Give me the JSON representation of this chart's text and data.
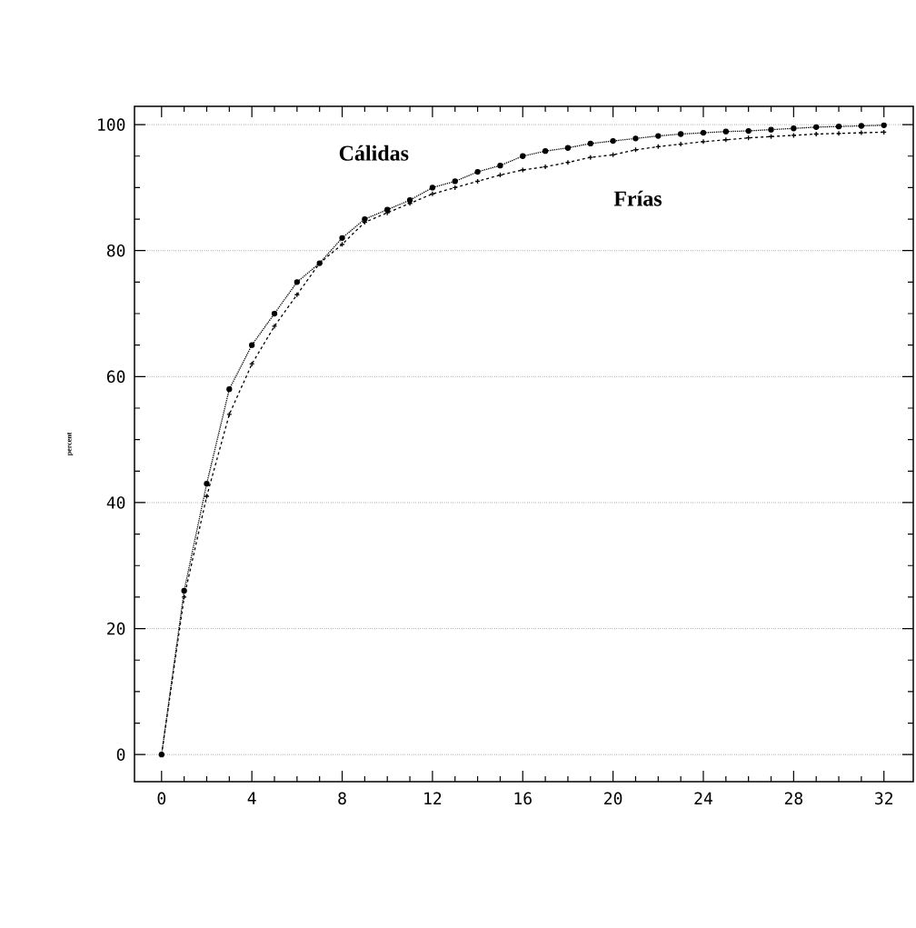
{
  "chart_data": {
    "type": "line",
    "ylabel": "percent",
    "x": [
      0,
      1,
      2,
      3,
      4,
      5,
      6,
      7,
      8,
      9,
      10,
      11,
      12,
      13,
      14,
      15,
      16,
      17,
      18,
      19,
      20,
      21,
      22,
      23,
      24,
      25,
      26,
      27,
      28,
      29,
      30,
      31,
      32
    ],
    "series": [
      {
        "name": "Cálidas",
        "color": "#000000",
        "line_style": "dotted",
        "marker": "circle",
        "values": [
          0,
          26,
          43,
          58,
          65,
          70,
          75,
          78,
          82,
          85,
          86.5,
          88,
          90,
          91,
          92.5,
          93.5,
          95,
          95.8,
          96.3,
          97,
          97.4,
          97.8,
          98.2,
          98.5,
          98.7,
          98.9,
          99,
          99.2,
          99.4,
          99.6,
          99.7,
          99.8,
          99.9
        ]
      },
      {
        "name": "Frías",
        "color": "#000000",
        "line_style": "dashed",
        "marker": "cross",
        "values": [
          0,
          25,
          41,
          54,
          62,
          68,
          73,
          78,
          81,
          84.5,
          86,
          87.5,
          89,
          90,
          91,
          92,
          92.8,
          93.3,
          94,
          94.8,
          95.2,
          96,
          96.5,
          96.9,
          97.3,
          97.6,
          97.9,
          98.1,
          98.3,
          98.5,
          98.6,
          98.7,
          98.8
        ]
      }
    ],
    "xlim": [
      -1.2,
      33.3
    ],
    "ylim": [
      -4.3,
      102.9
    ],
    "xticks": [
      0,
      4,
      8,
      12,
      16,
      20,
      24,
      28,
      32
    ],
    "yticks": [
      0,
      20,
      40,
      60,
      80,
      100
    ],
    "grid": "y",
    "legend": false
  }
}
